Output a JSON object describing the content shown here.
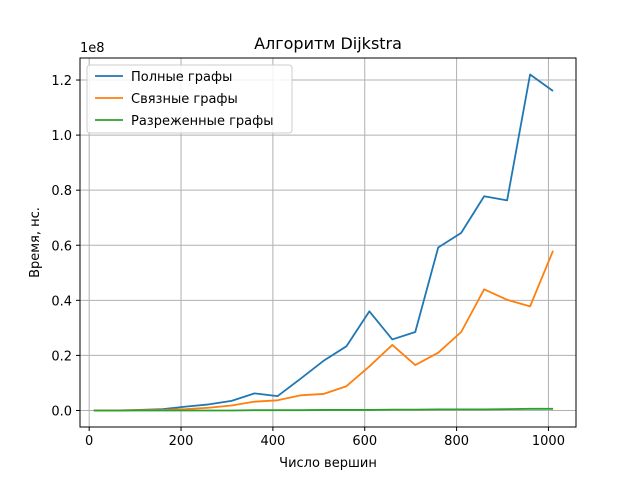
{
  "chart_data": {
    "type": "line",
    "title": "Алгоритм Dijkstra",
    "xlabel": "Число вершин",
    "ylabel": "Время, нс.",
    "y_offset_label": "1e8",
    "xlim": [
      -20,
      1060
    ],
    "ylim": [
      -0.06,
      1.28
    ],
    "x_ticks": [
      0,
      200,
      400,
      600,
      800,
      1000
    ],
    "y_ticks": [
      0.0,
      0.2,
      0.4,
      0.6,
      0.8,
      1.0,
      1.2
    ],
    "y_tick_labels": [
      "0.0",
      "0.2",
      "0.4",
      "0.6",
      "0.8",
      "1.0",
      "1.2"
    ],
    "grid": true,
    "legend_position": "top-left",
    "x": [
      10,
      60,
      110,
      160,
      210,
      260,
      310,
      360,
      410,
      460,
      510,
      560,
      610,
      660,
      710,
      760,
      810,
      860,
      910,
      960,
      1010
    ],
    "series": [
      {
        "name": "Полные графы",
        "color": "#1f77b4",
        "values": [
          0.0,
          0.0,
          0.002,
          0.005,
          0.014,
          0.022,
          0.035,
          0.062,
          0.052,
          0.115,
          0.18,
          0.233,
          0.36,
          0.258,
          0.285,
          0.592,
          0.645,
          0.778,
          0.763,
          1.22,
          1.16
        ]
      },
      {
        "name": "Связные графы",
        "color": "#ff7f0e",
        "values": [
          0.0,
          0.0,
          0.001,
          0.002,
          0.005,
          0.01,
          0.018,
          0.032,
          0.037,
          0.055,
          0.06,
          0.088,
          0.16,
          0.238,
          0.165,
          0.21,
          0.285,
          0.44,
          0.402,
          0.378,
          0.58
        ]
      },
      {
        "name": "Разреженные графы",
        "color": "#2ca02c",
        "values": [
          0.0,
          0.0,
          0.0,
          0.0,
          0.0,
          0.0,
          0.0,
          0.001,
          0.001,
          0.001,
          0.002,
          0.002,
          0.002,
          0.003,
          0.003,
          0.004,
          0.004,
          0.004,
          0.005,
          0.006,
          0.006
        ]
      }
    ]
  }
}
